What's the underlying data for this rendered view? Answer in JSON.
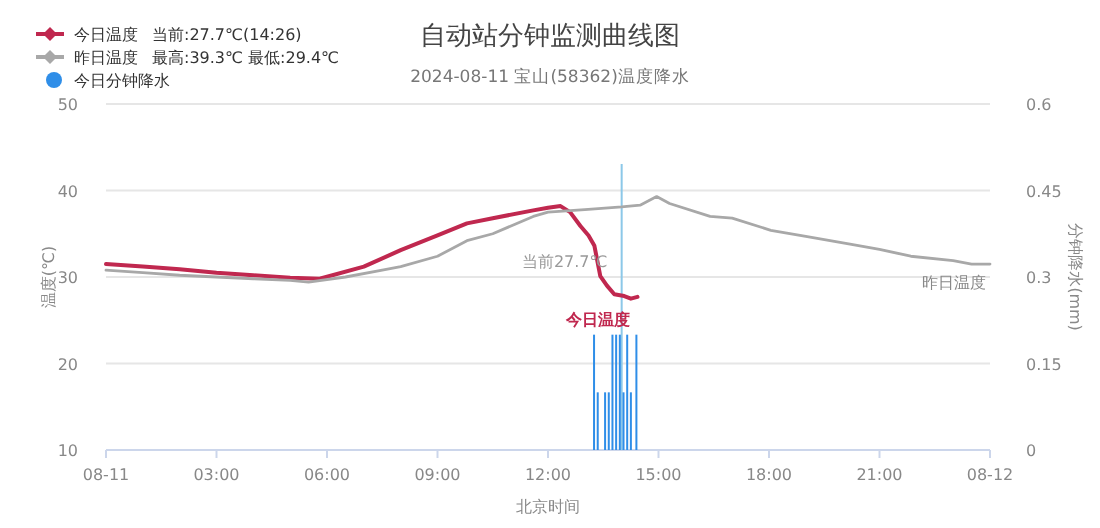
{
  "chart_data": {
    "type": "line",
    "title": "自动站分钟监测曲线图",
    "subtitle": "2024-08-11 宝山(58362)温度降水",
    "xlabel": "北京时间",
    "ylabel": "温度(℃)",
    "y2label": "分钟降水(mm)",
    "xlim": [
      0,
      24
    ],
    "xticks": [
      {
        "value": 0,
        "label": "08-11"
      },
      {
        "value": 3,
        "label": "03:00"
      },
      {
        "value": 6,
        "label": "06:00"
      },
      {
        "value": 9,
        "label": "09:00"
      },
      {
        "value": 12,
        "label": "12:00"
      },
      {
        "value": 15,
        "label": "15:00"
      },
      {
        "value": 18,
        "label": "18:00"
      },
      {
        "value": 21,
        "label": "21:00"
      },
      {
        "value": 24,
        "label": "08-12"
      }
    ],
    "ylim": [
      10,
      50
    ],
    "yticks": [
      10,
      20,
      30,
      40,
      50
    ],
    "y2lim": [
      0,
      0.6
    ],
    "y2ticks": [
      0,
      0.15,
      0.3,
      0.45,
      0.6
    ],
    "grid": "y",
    "legend": "top left",
    "marker": "none",
    "line_style": "solid",
    "series": [
      {
        "name": "今日温度",
        "color": "#c0284f",
        "x": [
          0,
          1,
          2,
          3,
          4,
          5,
          5.8,
          7,
          8,
          9,
          9.8,
          10.5,
          11.6,
          12,
          12.34,
          12.6,
          12.88,
          13.1,
          13.26,
          13.42,
          13.6,
          13.8,
          14.07,
          14.25,
          14.43
        ],
        "values": [
          31.5,
          31.2,
          30.9,
          30.5,
          30.2,
          29.9,
          29.8,
          31.2,
          33.1,
          34.8,
          36.2,
          36.8,
          37.7,
          38.0,
          38.2,
          37.5,
          35.9,
          34.8,
          33.6,
          30.1,
          29.0,
          28.0,
          27.8,
          27.5,
          27.7
        ]
      },
      {
        "name": "昨日温度",
        "color": "#a8a8a8",
        "x": [
          0,
          1,
          2,
          3,
          4,
          5,
          5.5,
          6.5,
          7.5,
          8,
          9,
          9.8,
          10.5,
          11.6,
          12,
          13,
          14,
          14.5,
          14.95,
          15.3,
          16.4,
          17,
          18.05,
          19,
          20.2,
          21,
          21.85,
          23,
          23.5,
          24
        ],
        "values": [
          30.8,
          30.5,
          30.2,
          30.0,
          29.8,
          29.6,
          29.4,
          30.0,
          30.8,
          31.2,
          32.4,
          34.2,
          35.0,
          37.0,
          37.5,
          37.8,
          38.1,
          38.3,
          39.3,
          38.5,
          37.0,
          36.8,
          35.4,
          34.7,
          33.8,
          33.2,
          32.4,
          31.9,
          31.5,
          31.5
        ]
      },
      {
        "name": "今日分钟降水",
        "type": "bar",
        "axis": "y2",
        "color": "#2f8ee8",
        "x": [
          13.25,
          13.35,
          13.55,
          13.65,
          13.75,
          13.85,
          13.95,
          14.05,
          14.15,
          14.25,
          14.4
        ],
        "values": [
          0.2,
          0.1,
          0.1,
          0.1,
          0.2,
          0.2,
          0.2,
          0.1,
          0.2,
          0.1,
          0.2
        ]
      }
    ],
    "ref_lines": [
      {
        "axis": "x",
        "value": 14,
        "color": "#8cc8e8"
      }
    ],
    "annotations": [
      "当前:27.7℃(14:26)",
      "最高:39.3℃ 最低:29.4℃",
      {
        "text": "当前27.7℃",
        "x": 14.43,
        "y": 27.7
      }
    ]
  }
}
